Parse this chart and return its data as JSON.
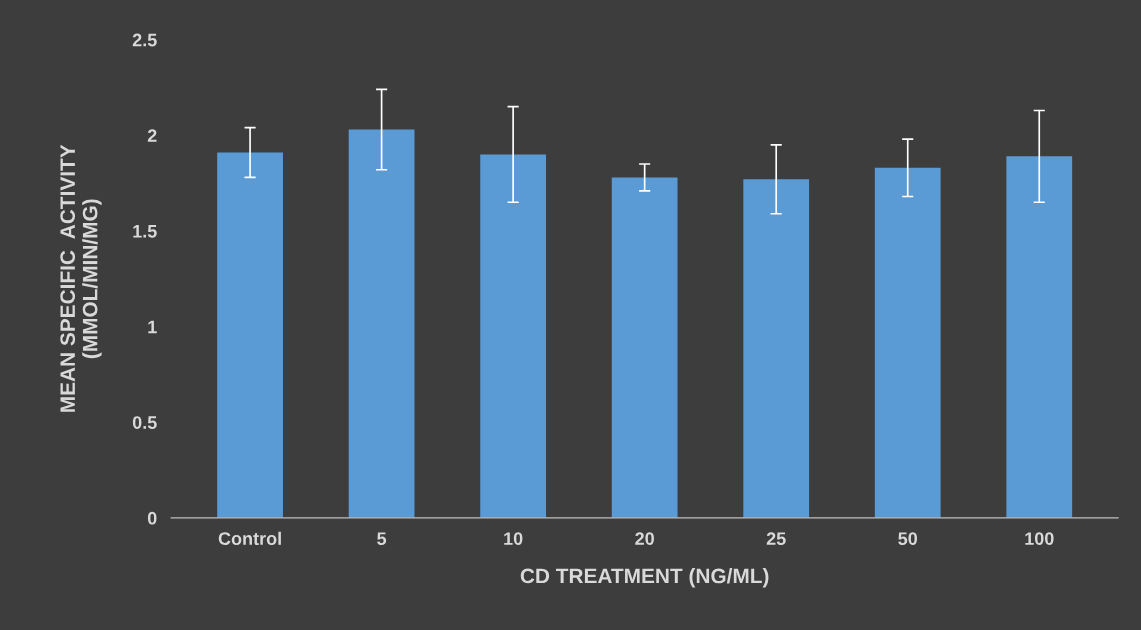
{
  "chart_data": {
    "type": "bar",
    "xlabel": "CD TREATMENT (NG/ML)",
    "ylabel": "MEAN SPECIFIC  ACTIVITY\n(MMOL/MIN/MG)",
    "categories": [
      "Control",
      "5",
      "10",
      "20",
      "25",
      "50",
      "100"
    ],
    "series": [
      {
        "color": "#5b9bd5",
        "values": [
          1.91,
          2.03,
          1.9,
          1.78,
          1.77,
          1.83,
          1.89
        ],
        "errors": [
          0.13,
          0.21,
          0.25,
          0.07,
          0.18,
          0.15,
          0.24
        ]
      }
    ],
    "ylim": [
      0,
      2.5
    ],
    "yticks": [
      0,
      0.5,
      1,
      1.5,
      2,
      2.5
    ],
    "grid": false,
    "legend": false
  }
}
